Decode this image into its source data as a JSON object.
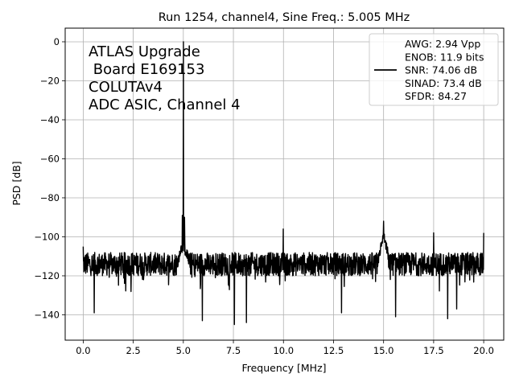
{
  "chart_data": {
    "type": "line",
    "title": "Run 1254, channel4, Sine Freq.: 5.005 MHz",
    "xlabel": "Frequency [MHz]",
    "ylabel": "PSD [dB]",
    "xlim": [
      -0.9,
      21.0
    ],
    "ylim": [
      -153,
      7
    ],
    "grid": true,
    "legend_position": "top-right",
    "x_ticks": [
      {
        "value": 0.0,
        "label": "0.0"
      },
      {
        "value": 2.5,
        "label": "2.5"
      },
      {
        "value": 5.0,
        "label": "5.0"
      },
      {
        "value": 7.5,
        "label": "7.5"
      },
      {
        "value": 10.0,
        "label": "10.0"
      },
      {
        "value": 12.5,
        "label": "12.5"
      },
      {
        "value": 15.0,
        "label": "15.0"
      },
      {
        "value": 17.5,
        "label": "17.5"
      },
      {
        "value": 20.0,
        "label": "20.0"
      }
    ],
    "y_ticks": [
      {
        "value": 0,
        "label": "0"
      },
      {
        "value": -20,
        "label": "−20"
      },
      {
        "value": -40,
        "label": "−40"
      },
      {
        "value": -60,
        "label": "−60"
      },
      {
        "value": -80,
        "label": "−80"
      },
      {
        "value": -100,
        "label": "−100"
      },
      {
        "value": -120,
        "label": "−120"
      },
      {
        "value": -140,
        "label": "−140"
      }
    ],
    "annotation_lines": [
      "ATLAS Upgrade",
      " Board E169153",
      "COLUTAv4",
      "ADC ASIC, Channel 4"
    ],
    "legend_lines": [
      "AWG: 2.94 Vpp",
      "ENOB: 11.9 bits",
      "SNR: 74.06 dB",
      "SINAD: 73.4 dB",
      "SFDR: 84.27"
    ],
    "series": [
      {
        "color": "#000000",
        "noise_floor_db": -114,
        "x_start": 0.0,
        "x_end": 20.0,
        "peaks": [
          {
            "x": 0.0,
            "y": -105
          },
          {
            "x": 4.95,
            "y": -89
          },
          {
            "x": 5.005,
            "y": 0
          },
          {
            "x": 5.06,
            "y": -90
          },
          {
            "x": 9.99,
            "y": -96
          },
          {
            "x": 15.0,
            "y": -92
          },
          {
            "x": 17.5,
            "y": -98
          },
          {
            "x": 20.0,
            "y": -98
          }
        ],
        "dips": [
          {
            "x": 0.55,
            "y": -139
          },
          {
            "x": 5.95,
            "y": -143
          },
          {
            "x": 7.55,
            "y": -145
          },
          {
            "x": 8.15,
            "y": -144
          },
          {
            "x": 12.9,
            "y": -139
          },
          {
            "x": 15.6,
            "y": -141
          },
          {
            "x": 18.2,
            "y": -142
          },
          {
            "x": 18.65,
            "y": -137
          }
        ]
      }
    ]
  }
}
